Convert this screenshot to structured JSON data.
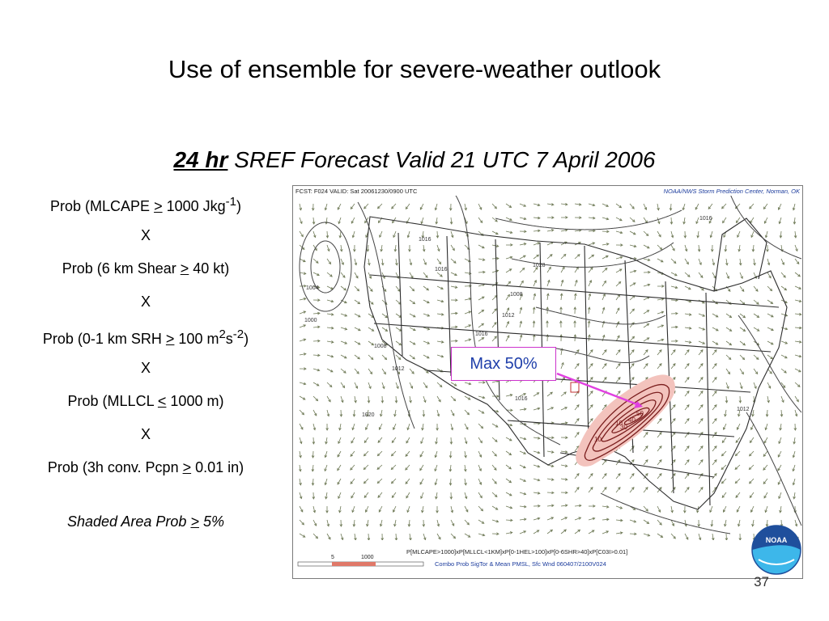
{
  "slide": {
    "title": "Use of ensemble for severe-weather outlook",
    "subtitle_hours": "24 hr",
    "subtitle_rest": "SREF Forecast Valid 21 UTC 7 April 2006",
    "page_number": "37"
  },
  "criteria": {
    "mlcape": {
      "pre": "Prob (MLCAPE ",
      "op": ">",
      "post": " 1000 Jkg",
      "exp": "-1",
      "close": ")"
    },
    "x1": "X",
    "shear": {
      "pre": "Prob (6 km Shear ",
      "op": ">",
      "post": " 40 kt)"
    },
    "x2": "X",
    "srh": {
      "pre": "Prob (0-1 km SRH ",
      "op": ">",
      "post": " 100 m",
      "exp1": "2",
      "mid": "s",
      "exp2": "-2",
      "close": ")"
    },
    "x3": "X",
    "lcl": {
      "pre": "Prob (MLLCL ",
      "op": "<",
      "post": " 1000 m)"
    },
    "x4": "X",
    "pcpn": {
      "pre": "Prob (3h conv. Pcpn ",
      "op": ">",
      "post": " 0.01 in)"
    },
    "shaded": {
      "pre": "Shaded Area Prob ",
      "op": ">",
      "post": " 5%"
    }
  },
  "map": {
    "header_left": "FCST: F024  VALID: Sat  20061230/0900 UTC",
    "header_right": "NOAA/NWS Storm Prediction Center, Norman, OK",
    "formula": "P[MLCAPE>1000]xP[MLLCL<1KM]xP[0-1HEL>100]xP[0-6SHR>40]xP[C03I>0.01]",
    "caption": "Combo Prob SigTor & Mean PMSL, Sfc Wnd 060407/2100V024",
    "legend_min": "5",
    "legend_max": "1000",
    "logo_text": "NOAA",
    "isobar_labels": [
      "1016",
      "1016",
      "1028",
      "1008",
      "1000",
      "1004",
      "1016",
      "1012",
      "1008",
      "1012",
      "1016",
      "1020",
      "1012",
      "1016",
      "1016"
    ],
    "prob_labels": [
      "10",
      "30",
      "40",
      "50",
      "10"
    ],
    "colors": {
      "shading": "#f3c3bd",
      "contour": "#7a1d1d",
      "callout_border": "#cc33cc",
      "callout_text": "#1f3faa",
      "arrow": "#e040e0",
      "logo_blue": "#1f4f9c",
      "logo_cyan": "#3db7ea"
    }
  },
  "callout": {
    "text": "Max 50%"
  }
}
